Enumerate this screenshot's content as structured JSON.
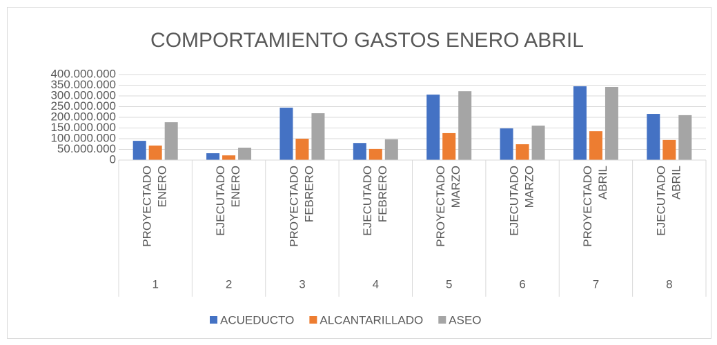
{
  "chart_data": {
    "type": "bar",
    "title": "COMPORTAMIENTO GASTOS ENERO ABRIL",
    "categories": [
      [
        "PROYECTADO",
        "ENERO"
      ],
      [
        "EJECUTADO",
        "ENERO"
      ],
      [
        "PROYECTADO",
        "FEBRERO"
      ],
      [
        "EJECUTADO",
        "FEBRERO"
      ],
      [
        "PROYECTADO",
        "MARZO"
      ],
      [
        "EJECUTADO",
        "MARZO"
      ],
      [
        "PROYECTADO",
        "ABRIL"
      ],
      [
        "EJECUTADO",
        "ABRIL"
      ]
    ],
    "category_groups": [
      "1",
      "2",
      "3",
      "4",
      "5",
      "6",
      "7",
      "8"
    ],
    "series": [
      {
        "name": "ACUEDUCTO",
        "color": "#4472c4",
        "values": [
          90000000,
          32000000,
          245000000,
          80000000,
          306000000,
          148000000,
          345000000,
          216000000
        ]
      },
      {
        "name": "ALCANTARILLADO",
        "color": "#ed7d31",
        "values": [
          68000000,
          22000000,
          100000000,
          52000000,
          126000000,
          74000000,
          135000000,
          94000000
        ]
      },
      {
        "name": "ASEO",
        "color": "#a5a5a5",
        "values": [
          177000000,
          58000000,
          219000000,
          97000000,
          322000000,
          161000000,
          342000000,
          210000000
        ]
      }
    ],
    "ylim": [
      0,
      400000000
    ],
    "yticks": [
      0,
      {
        "value": 50000000,
        "label": "50.000.000"
      },
      {
        "value": 100000000,
        "label": "100.000.000"
      },
      {
        "value": 150000000,
        "label": "150.000.000"
      },
      {
        "value": 200000000,
        "label": "200.000.000"
      },
      {
        "value": 250000000,
        "label": "250.000.000"
      },
      {
        "value": 300000000,
        "label": "300.000.000"
      },
      {
        "value": 350000000,
        "label": "350.000.000"
      },
      {
        "value": 400000000,
        "label": "400.000.000"
      }
    ],
    "grid": true,
    "legend": "bottom"
  }
}
